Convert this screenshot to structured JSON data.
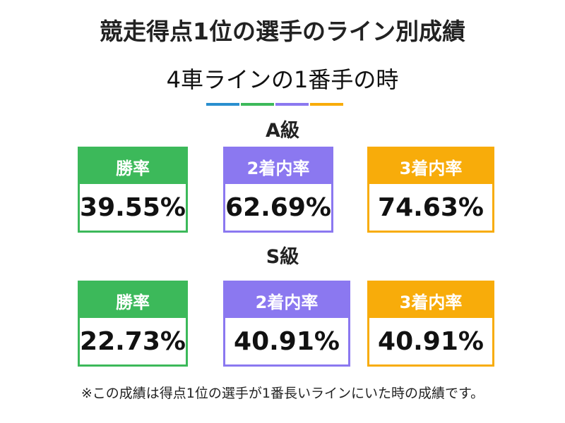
{
  "title": "競走得点1位の選手のライン別成績",
  "subtitle": "4車ラインの1番手の時",
  "accent_colors": {
    "blue": "#2a8fcf",
    "green": "#3cb95a",
    "purple": "#8b78f0",
    "orange": "#f8ac0a"
  },
  "grades": [
    {
      "label": "A級",
      "stats": [
        {
          "label": "勝率",
          "value": "39.55%"
        },
        {
          "label": "2着内率",
          "value": "62.69%"
        },
        {
          "label": "3着内率",
          "value": "74.63%"
        }
      ]
    },
    {
      "label": "S級",
      "stats": [
        {
          "label": "勝率",
          "value": "22.73%"
        },
        {
          "label": "2着内率",
          "value": "40.91%"
        },
        {
          "label": "3着内率",
          "value": "40.91%"
        }
      ]
    }
  ],
  "note": "※この成績は得点1位の選手が1番長いラインにいた時の成績です。"
}
